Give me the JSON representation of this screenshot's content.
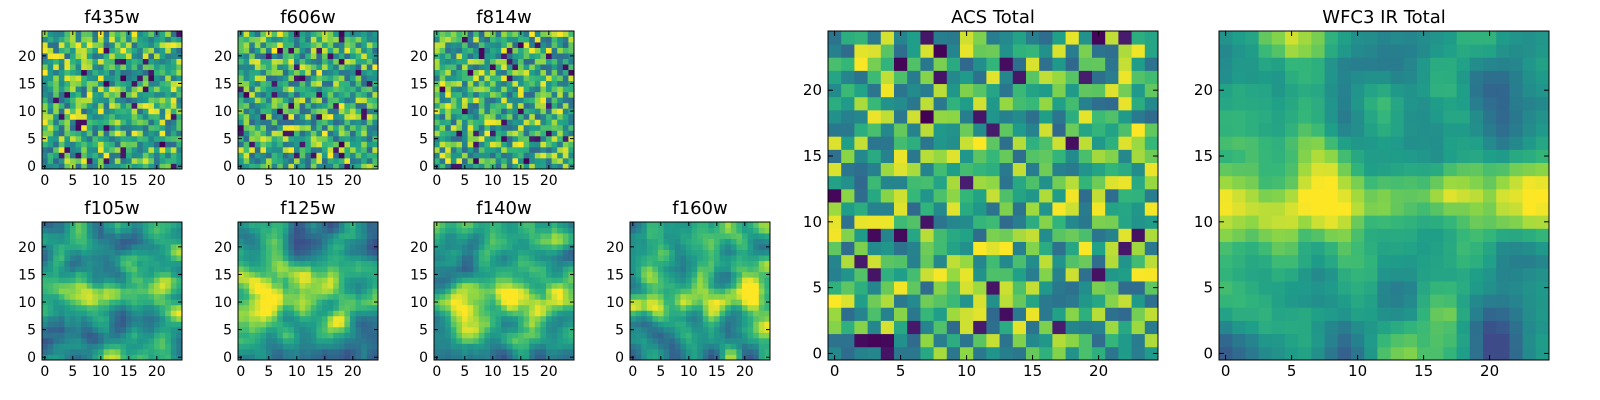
{
  "chart_data": [
    {
      "type": "heatmap",
      "title": "f435w",
      "xticks": [
        "0",
        "5",
        "10",
        "15",
        "20"
      ],
      "yticks": [
        "0",
        "5",
        "10",
        "15",
        "20"
      ],
      "grid_size": 25,
      "xlim": [
        0,
        24
      ],
      "ylim": [
        0,
        24
      ],
      "texture": "noise",
      "seed": 11,
      "colormap": "viridis"
    },
    {
      "type": "heatmap",
      "title": "f606w",
      "xticks": [
        "0",
        "5",
        "10",
        "15",
        "20"
      ],
      "yticks": [
        "0",
        "5",
        "10",
        "15",
        "20"
      ],
      "grid_size": 25,
      "xlim": [
        0,
        24
      ],
      "ylim": [
        0,
        24
      ],
      "texture": "noise",
      "seed": 23,
      "colormap": "viridis"
    },
    {
      "type": "heatmap",
      "title": "f814w",
      "xticks": [
        "0",
        "5",
        "10",
        "15",
        "20"
      ],
      "yticks": [
        "0",
        "5",
        "10",
        "15",
        "20"
      ],
      "grid_size": 25,
      "xlim": [
        0,
        24
      ],
      "ylim": [
        0,
        24
      ],
      "texture": "noise",
      "seed": 37,
      "colormap": "viridis"
    },
    {
      "type": "heatmap",
      "title": "f105w",
      "xticks": [
        "0",
        "5",
        "10",
        "15",
        "20"
      ],
      "yticks": [
        "0",
        "5",
        "10",
        "15",
        "20"
      ],
      "grid_size": 25,
      "xlim": [
        0,
        24
      ],
      "ylim": [
        0,
        24
      ],
      "texture": "smooth",
      "seed": 41,
      "colormap": "viridis"
    },
    {
      "type": "heatmap",
      "title": "f125w",
      "xticks": [
        "0",
        "5",
        "10",
        "15",
        "20"
      ],
      "yticks": [
        "0",
        "5",
        "10",
        "15",
        "20"
      ],
      "grid_size": 25,
      "xlim": [
        0,
        24
      ],
      "ylim": [
        0,
        24
      ],
      "texture": "smooth",
      "seed": 53,
      "colormap": "viridis"
    },
    {
      "type": "heatmap",
      "title": "f140w",
      "xticks": [
        "0",
        "5",
        "10",
        "15",
        "20"
      ],
      "yticks": [
        "0",
        "5",
        "10",
        "15",
        "20"
      ],
      "grid_size": 25,
      "xlim": [
        0,
        24
      ],
      "ylim": [
        0,
        24
      ],
      "texture": "smooth",
      "seed": 67,
      "colormap": "viridis"
    },
    {
      "type": "heatmap",
      "title": "f160w",
      "xticks": [
        "0",
        "5",
        "10",
        "15",
        "20"
      ],
      "yticks": [
        "0",
        "5",
        "10",
        "15",
        "20"
      ],
      "grid_size": 25,
      "xlim": [
        0,
        24
      ],
      "ylim": [
        0,
        24
      ],
      "texture": "smooth",
      "seed": 79,
      "colormap": "viridis"
    },
    {
      "type": "heatmap",
      "title": "ACS Total",
      "xticks": [
        "0",
        "5",
        "10",
        "15",
        "20"
      ],
      "yticks": [
        "0",
        "5",
        "10",
        "15",
        "20"
      ],
      "grid_size": 25,
      "xlim": [
        0,
        24
      ],
      "ylim": [
        0,
        24
      ],
      "texture": "noise",
      "seed": 97,
      "colormap": "viridis"
    },
    {
      "type": "heatmap",
      "title": "WFC3 IR Total",
      "xticks": [
        "0",
        "5",
        "10",
        "15",
        "20"
      ],
      "yticks": [
        "0",
        "5",
        "10",
        "15",
        "20"
      ],
      "grid_size": 25,
      "xlim": [
        0,
        24
      ],
      "ylim": [
        0,
        24
      ],
      "texture": "smooth",
      "seed": 131,
      "colormap": "viridis"
    }
  ]
}
